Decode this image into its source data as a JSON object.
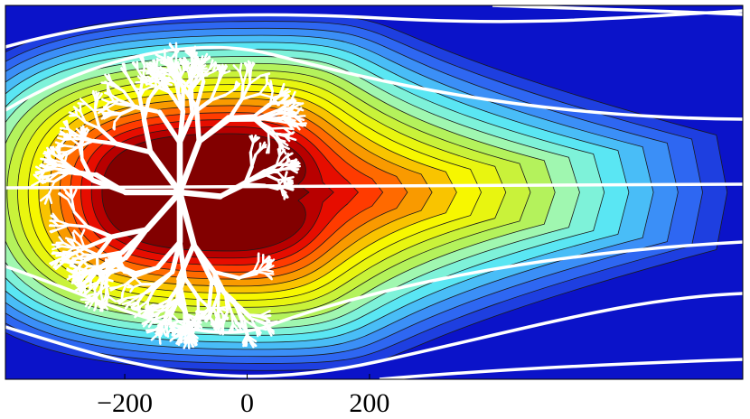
{
  "chart_data": {
    "type": "heatmap",
    "title": "",
    "xlabel": "",
    "ylabel": "",
    "x_ticks": [
      {
        "value": -200,
        "label": "−200"
      },
      {
        "value": 0,
        "label": "0"
      },
      {
        "value": 200,
        "label": "200"
      }
    ],
    "xlim": [
      -395,
      810
    ],
    "ylim": [
      -300,
      300
    ],
    "grid": false,
    "legend": "none",
    "contour_levels": 16,
    "colormap": [
      "#0b13c9",
      "#1e3fe0",
      "#2e67f2",
      "#3b8ff7",
      "#49bdf7",
      "#5ae6f3",
      "#7ef2d9",
      "#a0f7b0",
      "#b4f25c",
      "#c9f23a",
      "#e8f510",
      "#f7f700",
      "#f9c400",
      "#f99a00",
      "#ff6a00",
      "#ff3b00",
      "#e60d00",
      "#b80000",
      "#820000"
    ],
    "field_line_color": "#ffffff",
    "fractal_color": "#ffffff"
  }
}
